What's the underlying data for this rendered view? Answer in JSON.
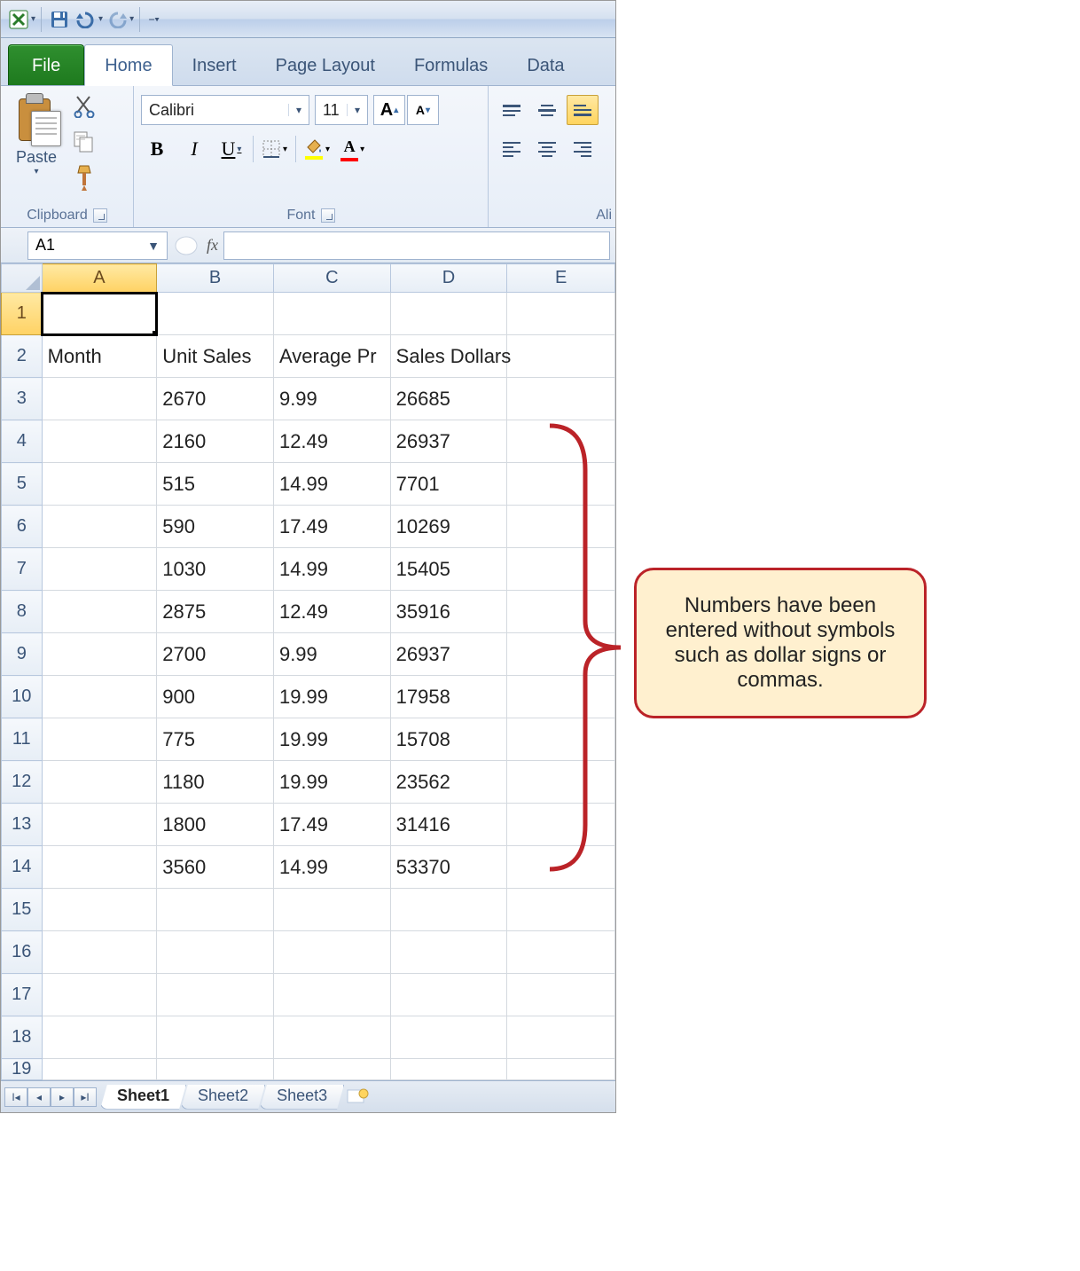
{
  "qat": {
    "drop_glyph": "▾",
    "custom_glyph": "⎯▾"
  },
  "tabs": {
    "file": "File",
    "list": [
      "Home",
      "Insert",
      "Page Layout",
      "Formulas",
      "Data"
    ],
    "active": "Home"
  },
  "ribbon": {
    "clipboard": {
      "paste": "Paste",
      "label": "Clipboard"
    },
    "font": {
      "name": "Calibri",
      "size": "11",
      "bold": "B",
      "italic": "I",
      "underline": "U",
      "fill_color": "#ffff00",
      "font_color": "#ff0000",
      "label": "Font"
    },
    "alignment": {
      "label": "Ali"
    }
  },
  "namebox": "A1",
  "fx_label": "fx",
  "columns": [
    "A",
    "B",
    "C",
    "D",
    "E"
  ],
  "row_count": 19,
  "active_cell": {
    "row": 1,
    "col": "A"
  },
  "headers": {
    "A": "Month",
    "B": "Unit Sales",
    "C": "Average Pr",
    "D": "Sales Dollars"
  },
  "data_rows": [
    {
      "B": "2670",
      "C": "9.99",
      "D": "26685"
    },
    {
      "B": "2160",
      "C": "12.49",
      "D": "26937"
    },
    {
      "B": "515",
      "C": "14.99",
      "D": "7701"
    },
    {
      "B": "590",
      "C": "17.49",
      "D": "10269"
    },
    {
      "B": "1030",
      "C": "14.99",
      "D": "15405"
    },
    {
      "B": "2875",
      "C": "12.49",
      "D": "35916"
    },
    {
      "B": "2700",
      "C": "9.99",
      "D": "26937"
    },
    {
      "B": "900",
      "C": "19.99",
      "D": "17958"
    },
    {
      "B": "775",
      "C": "19.99",
      "D": "15708"
    },
    {
      "B": "1180",
      "C": "19.99",
      "D": "23562"
    },
    {
      "B": "1800",
      "C": "17.49",
      "D": "31416"
    },
    {
      "B": "3560",
      "C": "14.99",
      "D": "53370"
    }
  ],
  "sheet_tabs": {
    "list": [
      "Sheet1",
      "Sheet2",
      "Sheet3"
    ],
    "active": "Sheet1"
  },
  "callout": "Numbers have been entered without symbols such as dollar signs or commas.",
  "colors": {
    "brace": "#bb2328",
    "callout_bg": "#fff0cf",
    "active_header_bg": "#ffd866"
  }
}
